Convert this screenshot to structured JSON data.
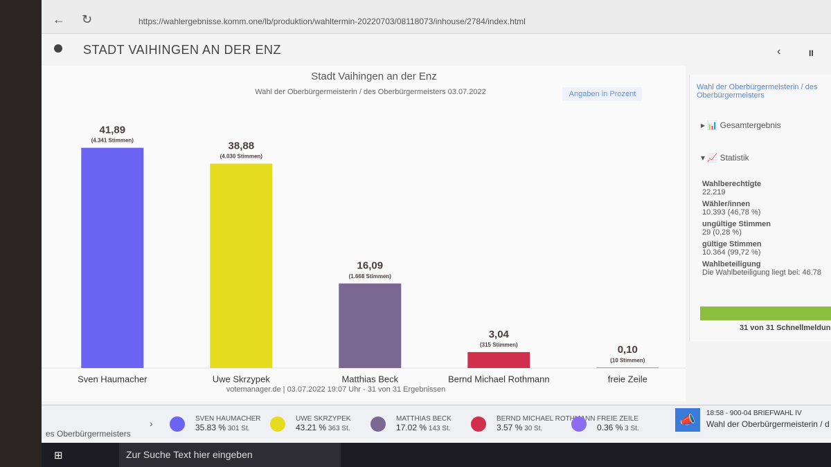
{
  "browser": {
    "url": "https://wahlergebnisse.komm.one/lb/produktion/wahltermin-20220703/08118073/inhouse/2784/index.html"
  },
  "header": {
    "title": "STADT VAIHINGEN AN DER ENZ"
  },
  "chart_data": {
    "type": "bar",
    "title": "Stadt Vaihingen an der Enz",
    "subtitle": "Wahl der Oberbürgermeisterin / des Oberbürgermeisters 03.07.2022",
    "note": "Angaben in Prozent",
    "footer": "votemanager.de | 03.07.2022 19:07 Uhr - 31 von 31 Ergebnissen",
    "categories": [
      "Sven Haumacher",
      "Uwe Skrzypek",
      "Matthias Beck",
      "Bernd Michael Rothmann",
      "freie Zeile"
    ],
    "values": [
      41.89,
      38.88,
      16.09,
      3.04,
      0.1
    ],
    "value_labels": [
      "41,89",
      "38,88",
      "16,09",
      "3,04",
      "0,10"
    ],
    "vote_labels": [
      "(4.341 Stimmen)",
      "(4.030 Stimmen)",
      "(1.668 Stimmen)",
      "(315 Stimmen)",
      "(10 Stimmen)"
    ],
    "colors": [
      "#6b63f2",
      "#e6dc1f",
      "#7b6892",
      "#d1304c",
      "#8c6cf0"
    ]
  },
  "sidebar": {
    "title": "Wahl der Oberbürgermeisterin / des Oberbürgermeisters",
    "menu": [
      "Gesamtergebnis",
      "Statistik"
    ],
    "stats": [
      {
        "label": "Wahlberechtigte",
        "value": "22.219"
      },
      {
        "label": "Wähler/innen",
        "value": "10.393 (46,78 %)"
      },
      {
        "label": "ungültige Stimmen",
        "value": "29 (0,28 %)"
      },
      {
        "label": "gültige Stimmen",
        "value": "10.364 (99,72 %)"
      },
      {
        "label": "Wahlbeteiligung",
        "value": "Die Wahlbeteiligung liegt bei: 46.78"
      }
    ],
    "progress": "31 von 31 Schnellmeldun"
  },
  "ticker": {
    "lead": "es Oberbürgermeisters",
    "items": [
      {
        "name": "SVEN HAUMACHER",
        "percent": "35.83 %",
        "votes": "301 St."
      },
      {
        "name": "UWE SKRZYPEK",
        "percent": "43.21 %",
        "votes": "363 St."
      },
      {
        "name": "MATTHIAS BECK",
        "percent": "17.02 %",
        "votes": "143 St."
      },
      {
        "name": "BERND MICHAEL ROTHMANN",
        "percent": "3.57 %",
        "votes": "30 St."
      },
      {
        "name": "FREIE ZEILE",
        "percent": "0.36 %",
        "votes": "3 St."
      }
    ],
    "news_time": "18:58 - 900-04 BRIEFWAHL IV",
    "news_text": "Wahl der Oberbürgermeisterin / d"
  },
  "taskbar": {
    "search": "Zur Suche Text hier eingeben"
  }
}
